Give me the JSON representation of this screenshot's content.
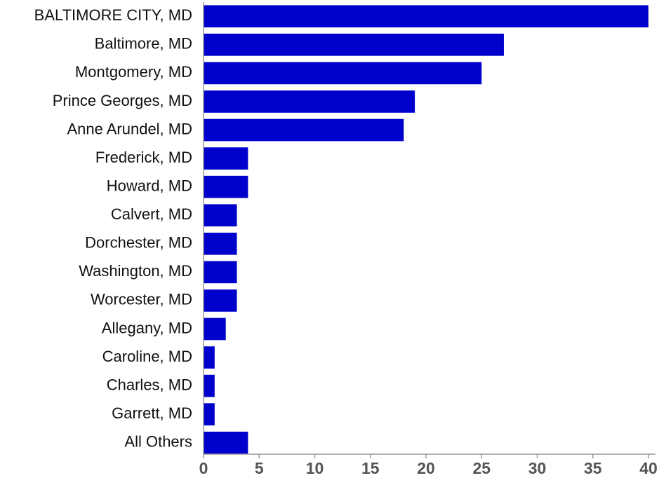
{
  "chart_data": {
    "type": "bar",
    "orientation": "horizontal",
    "categories": [
      "BALTIMORE CITY, MD",
      "Baltimore, MD",
      "Montgomery, MD",
      "Prince Georges, MD",
      "Anne Arundel, MD",
      "Frederick, MD",
      "Howard, MD",
      "Calvert, MD",
      "Dorchester, MD",
      "Washington, MD",
      "Worcester, MD",
      "Allegany, MD",
      "Caroline, MD",
      "Charles, MD",
      "Garrett, MD",
      "All Others"
    ],
    "values": [
      40,
      27,
      25,
      19,
      18,
      4,
      4,
      3,
      3,
      3,
      3,
      2,
      1,
      1,
      1,
      4
    ],
    "color": "#0000cc",
    "xlim": [
      0,
      40
    ],
    "xticks": [
      0,
      5,
      10,
      15,
      20,
      25,
      30,
      35,
      40
    ],
    "grid": false
  }
}
